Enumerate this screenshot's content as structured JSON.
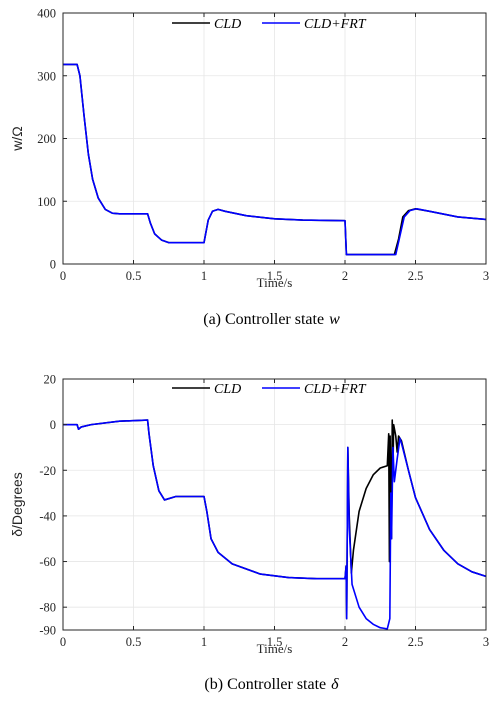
{
  "chart_data": [
    {
      "type": "line",
      "caption_prefix": "(a) Controller state",
      "caption_math": "w",
      "xlabel": "Time/s",
      "ylabel": "w/Ω",
      "xlim": [
        0,
        3
      ],
      "ylim": [
        0,
        400
      ],
      "xticks": [
        0,
        0.5,
        1,
        1.5,
        2,
        2.5,
        3
      ],
      "xticklabels": [
        "0",
        "0.5",
        "1",
        "1.5",
        "2",
        "2.5",
        "3"
      ],
      "yticks": [
        0,
        100,
        200,
        300,
        400
      ],
      "yticklabels": [
        "0",
        "100",
        "200",
        "300",
        "400"
      ],
      "grid": true,
      "legend_position": "top",
      "series": [
        {
          "name": "CLD",
          "color": "#000000",
          "points": [
            [
              0,
              318
            ],
            [
              0.1,
              318
            ],
            [
              0.12,
              300
            ],
            [
              0.15,
              235
            ],
            [
              0.18,
              175
            ],
            [
              0.21,
              135
            ],
            [
              0.25,
              105
            ],
            [
              0.3,
              87
            ],
            [
              0.35,
              81
            ],
            [
              0.4,
              80
            ],
            [
              0.6,
              80
            ],
            [
              0.62,
              65
            ],
            [
              0.65,
              48
            ],
            [
              0.7,
              38
            ],
            [
              0.75,
              34
            ],
            [
              1.0,
              34
            ],
            [
              1.03,
              70
            ],
            [
              1.06,
              84
            ],
            [
              1.1,
              87
            ],
            [
              1.15,
              84
            ],
            [
              1.3,
              77
            ],
            [
              1.5,
              72
            ],
            [
              1.7,
              70
            ],
            [
              2.0,
              69
            ],
            [
              2.01,
              15
            ],
            [
              2.35,
              15
            ],
            [
              2.38,
              40
            ],
            [
              2.41,
              75
            ],
            [
              2.45,
              85
            ],
            [
              2.5,
              88
            ],
            [
              2.6,
              84
            ],
            [
              2.8,
              75
            ],
            [
              3.0,
              71
            ]
          ]
        },
        {
          "name": "CLD+FRT",
          "color": "#0000ff",
          "points": [
            [
              0,
              318
            ],
            [
              0.1,
              318
            ],
            [
              0.12,
              300
            ],
            [
              0.15,
              235
            ],
            [
              0.18,
              175
            ],
            [
              0.21,
              135
            ],
            [
              0.25,
              105
            ],
            [
              0.3,
              87
            ],
            [
              0.35,
              81
            ],
            [
              0.4,
              80
            ],
            [
              0.6,
              80
            ],
            [
              0.62,
              65
            ],
            [
              0.65,
              48
            ],
            [
              0.7,
              38
            ],
            [
              0.75,
              34
            ],
            [
              1.0,
              34
            ],
            [
              1.03,
              70
            ],
            [
              1.06,
              84
            ],
            [
              1.1,
              87
            ],
            [
              1.15,
              84
            ],
            [
              1.3,
              77
            ],
            [
              1.5,
              72
            ],
            [
              1.7,
              70
            ],
            [
              2.0,
              69
            ],
            [
              2.01,
              15
            ],
            [
              2.36,
              15
            ],
            [
              2.39,
              45
            ],
            [
              2.42,
              75
            ],
            [
              2.46,
              85
            ],
            [
              2.51,
              88
            ],
            [
              2.6,
              84
            ],
            [
              2.8,
              75
            ],
            [
              3.0,
              71
            ]
          ]
        }
      ]
    },
    {
      "type": "line",
      "caption_prefix": "(b) Controller state",
      "caption_math": "δ",
      "xlabel": "Time/s",
      "ylabel": "δ/Degrees",
      "xlim": [
        0,
        3
      ],
      "ylim": [
        -90,
        20
      ],
      "xticks": [
        0,
        0.5,
        1,
        1.5,
        2,
        2.5,
        3
      ],
      "xticklabels": [
        "0",
        "0.5",
        "1",
        "1.5",
        "2",
        "2.5",
        "3"
      ],
      "yticks": [
        -90,
        -80,
        -60,
        -40,
        -20,
        0,
        20
      ],
      "yticklabels": [
        "-90",
        "-80",
        "-60",
        "-40",
        "-20",
        "0",
        "20"
      ],
      "grid": true,
      "legend_position": "top",
      "series": [
        {
          "name": "CLD",
          "color": "#000000",
          "points": [
            [
              0,
              0
            ],
            [
              0.1,
              0
            ],
            [
              0.11,
              -2
            ],
            [
              0.13,
              -1
            ],
            [
              0.2,
              0
            ],
            [
              0.4,
              1.5
            ],
            [
              0.6,
              2
            ],
            [
              0.61,
              -4
            ],
            [
              0.64,
              -18
            ],
            [
              0.68,
              -29
            ],
            [
              0.72,
              -33
            ],
            [
              0.8,
              -31.5
            ],
            [
              1.0,
              -31.5
            ],
            [
              1.02,
              -38
            ],
            [
              1.05,
              -50
            ],
            [
              1.1,
              -56
            ],
            [
              1.2,
              -61
            ],
            [
              1.4,
              -65.5
            ],
            [
              1.6,
              -67
            ],
            [
              1.8,
              -67.5
            ],
            [
              2.0,
              -67.5
            ],
            [
              2.008,
              -62
            ],
            [
              2.012,
              -85
            ],
            [
              2.02,
              -10
            ],
            [
              2.03,
              -40
            ],
            [
              2.045,
              -65
            ],
            [
              2.06,
              -55
            ],
            [
              2.1,
              -38
            ],
            [
              2.15,
              -28
            ],
            [
              2.2,
              -22
            ],
            [
              2.25,
              -19
            ],
            [
              2.3,
              -18
            ],
            [
              2.31,
              -4
            ],
            [
              2.315,
              -60
            ],
            [
              2.32,
              -5
            ],
            [
              2.33,
              -50
            ],
            [
              2.335,
              2
            ],
            [
              2.34,
              -20
            ],
            [
              2.345,
              0
            ],
            [
              2.36,
              -5
            ],
            [
              2.37,
              -12
            ],
            [
              2.38,
              -5
            ],
            [
              2.4,
              -7
            ],
            [
              2.45,
              -20
            ],
            [
              2.5,
              -32
            ],
            [
              2.6,
              -46
            ],
            [
              2.7,
              -55
            ],
            [
              2.8,
              -61
            ],
            [
              2.9,
              -64.5
            ],
            [
              3.0,
              -66.5
            ]
          ]
        },
        {
          "name": "CLD+FRT",
          "color": "#0000ff",
          "points": [
            [
              0,
              0
            ],
            [
              0.1,
              0
            ],
            [
              0.11,
              -2
            ],
            [
              0.13,
              -1
            ],
            [
              0.2,
              0
            ],
            [
              0.4,
              1.5
            ],
            [
              0.6,
              2
            ],
            [
              0.61,
              -4
            ],
            [
              0.64,
              -18
            ],
            [
              0.68,
              -29
            ],
            [
              0.72,
              -33
            ],
            [
              0.8,
              -31.5
            ],
            [
              1.0,
              -31.5
            ],
            [
              1.02,
              -38
            ],
            [
              1.05,
              -50
            ],
            [
              1.1,
              -56
            ],
            [
              1.2,
              -61
            ],
            [
              1.4,
              -65.5
            ],
            [
              1.6,
              -67
            ],
            [
              1.8,
              -67.5
            ],
            [
              2.0,
              -67.5
            ],
            [
              2.008,
              -62
            ],
            [
              2.012,
              -85
            ],
            [
              2.02,
              -10
            ],
            [
              2.03,
              -45
            ],
            [
              2.05,
              -70
            ],
            [
              2.1,
              -80
            ],
            [
              2.15,
              -85
            ],
            [
              2.2,
              -87.5
            ],
            [
              2.25,
              -89
            ],
            [
              2.3,
              -89.5
            ],
            [
              2.31,
              -87
            ],
            [
              2.318,
              -85
            ],
            [
              2.325,
              -30
            ],
            [
              2.33,
              -50
            ],
            [
              2.34,
              -10
            ],
            [
              2.35,
              -25
            ],
            [
              2.37,
              -15
            ],
            [
              2.39,
              -6
            ],
            [
              2.4,
              -8
            ],
            [
              2.45,
              -20
            ],
            [
              2.5,
              -32
            ],
            [
              2.6,
              -46
            ],
            [
              2.7,
              -55
            ],
            [
              2.8,
              -61
            ],
            [
              2.9,
              -64.5
            ],
            [
              3.0,
              -66.5
            ]
          ]
        }
      ]
    }
  ]
}
